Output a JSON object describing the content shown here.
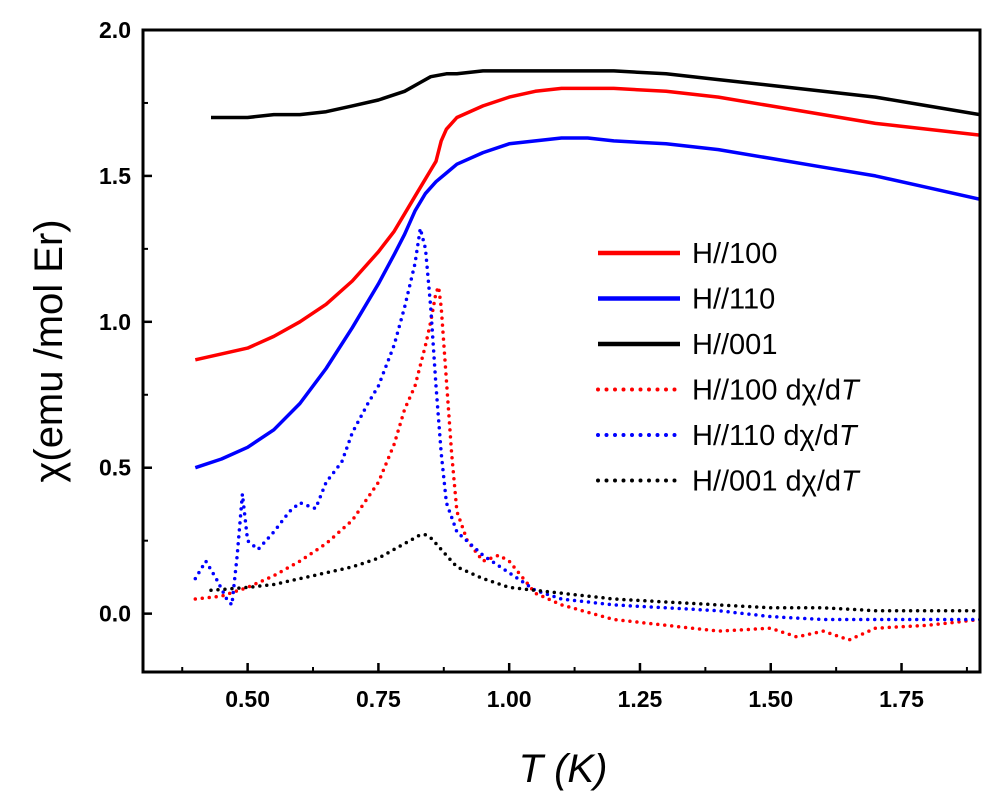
{
  "chart_data": {
    "type": "line",
    "xlabel": "T (K)",
    "xlabel_parts": {
      "symbol": "T",
      "unit": " (K)"
    },
    "ylabel": "χ(emu /mol Er)",
    "xlim": [
      0.3,
      1.9
    ],
    "ylim": [
      -0.2,
      2.0
    ],
    "x_ticks": [
      0.5,
      0.75,
      1.0,
      1.25,
      1.5,
      1.75
    ],
    "x_tick_labels": [
      "0.50",
      "0.75",
      "1.00",
      "1.25",
      "1.50",
      "1.75"
    ],
    "y_ticks": [
      0.0,
      0.5,
      1.0,
      1.5,
      2.0
    ],
    "y_tick_labels": [
      "0.0",
      "0.5",
      "1.0",
      "1.5",
      "2.0"
    ],
    "legend_position": "right",
    "series": [
      {
        "name": "H//100",
        "label_parts": {
          "main": "H//100",
          "deriv": "",
          "deriv_italic": ""
        },
        "style": "solid",
        "color": "#ff0000",
        "x": [
          0.4,
          0.45,
          0.5,
          0.55,
          0.6,
          0.65,
          0.7,
          0.75,
          0.78,
          0.8,
          0.82,
          0.84,
          0.85,
          0.86,
          0.87,
          0.88,
          0.9,
          0.95,
          1.0,
          1.05,
          1.1,
          1.15,
          1.2,
          1.3,
          1.4,
          1.5,
          1.6,
          1.7,
          1.8,
          1.9
        ],
        "y": [
          0.87,
          0.89,
          0.91,
          0.95,
          1.0,
          1.06,
          1.14,
          1.24,
          1.31,
          1.37,
          1.43,
          1.49,
          1.52,
          1.55,
          1.62,
          1.66,
          1.7,
          1.74,
          1.77,
          1.79,
          1.8,
          1.8,
          1.8,
          1.79,
          1.77,
          1.74,
          1.71,
          1.68,
          1.66,
          1.64
        ]
      },
      {
        "name": "H//110",
        "label_parts": {
          "main": "H//110",
          "deriv": "",
          "deriv_italic": ""
        },
        "style": "solid",
        "color": "#0000ff",
        "x": [
          0.4,
          0.45,
          0.5,
          0.55,
          0.6,
          0.65,
          0.7,
          0.75,
          0.78,
          0.8,
          0.82,
          0.84,
          0.86,
          0.88,
          0.9,
          0.95,
          1.0,
          1.05,
          1.1,
          1.15,
          1.2,
          1.3,
          1.4,
          1.5,
          1.6,
          1.7,
          1.8,
          1.9
        ],
        "y": [
          0.5,
          0.53,
          0.57,
          0.63,
          0.72,
          0.84,
          0.98,
          1.13,
          1.23,
          1.3,
          1.38,
          1.44,
          1.48,
          1.51,
          1.54,
          1.58,
          1.61,
          1.62,
          1.63,
          1.63,
          1.62,
          1.61,
          1.59,
          1.56,
          1.53,
          1.5,
          1.46,
          1.42
        ]
      },
      {
        "name": "H//001",
        "label_parts": {
          "main": "H//001",
          "deriv": "",
          "deriv_italic": ""
        },
        "style": "solid",
        "color": "#000000",
        "x": [
          0.43,
          0.5,
          0.55,
          0.6,
          0.65,
          0.7,
          0.75,
          0.8,
          0.83,
          0.85,
          0.88,
          0.9,
          0.95,
          1.0,
          1.05,
          1.1,
          1.15,
          1.2,
          1.3,
          1.4,
          1.5,
          1.6,
          1.7,
          1.8,
          1.9
        ],
        "y": [
          1.7,
          1.7,
          1.71,
          1.71,
          1.72,
          1.74,
          1.76,
          1.79,
          1.82,
          1.84,
          1.85,
          1.85,
          1.86,
          1.86,
          1.86,
          1.86,
          1.86,
          1.86,
          1.85,
          1.83,
          1.81,
          1.79,
          1.77,
          1.74,
          1.71
        ]
      },
      {
        "name": "H//100 dχ/dT",
        "label_parts": {
          "main": "H//100 ",
          "deriv": "dχ/d",
          "deriv_italic": "T"
        },
        "style": "dotted",
        "color": "#ff0000",
        "x": [
          0.4,
          0.45,
          0.5,
          0.55,
          0.6,
          0.65,
          0.7,
          0.75,
          0.78,
          0.8,
          0.82,
          0.84,
          0.85,
          0.86,
          0.865,
          0.87,
          0.88,
          0.89,
          0.9,
          0.92,
          0.95,
          0.98,
          1.0,
          1.05,
          1.1,
          1.2,
          1.3,
          1.4,
          1.5,
          1.55,
          1.6,
          1.65,
          1.7,
          1.8,
          1.9
        ],
        "y": [
          0.05,
          0.06,
          0.09,
          0.13,
          0.18,
          0.24,
          0.32,
          0.45,
          0.58,
          0.7,
          0.78,
          0.92,
          1.0,
          1.1,
          1.12,
          1.05,
          0.8,
          0.55,
          0.35,
          0.25,
          0.18,
          0.2,
          0.18,
          0.07,
          0.03,
          -0.02,
          -0.04,
          -0.06,
          -0.05,
          -0.08,
          -0.06,
          -0.09,
          -0.05,
          -0.04,
          -0.02
        ]
      },
      {
        "name": "H//110 dχ/dT",
        "label_parts": {
          "main": "H//110 ",
          "deriv": "dχ/d",
          "deriv_italic": "T"
        },
        "style": "dotted",
        "color": "#0000ff",
        "x": [
          0.4,
          0.42,
          0.44,
          0.46,
          0.47,
          0.48,
          0.49,
          0.5,
          0.52,
          0.55,
          0.58,
          0.6,
          0.63,
          0.65,
          0.68,
          0.7,
          0.73,
          0.75,
          0.78,
          0.8,
          0.82,
          0.83,
          0.84,
          0.85,
          0.86,
          0.87,
          0.88,
          0.9,
          0.95,
          1.0,
          1.05,
          1.1,
          1.2,
          1.3,
          1.4,
          1.5,
          1.6,
          1.7,
          1.8,
          1.9
        ],
        "y": [
          0.12,
          0.18,
          0.12,
          0.05,
          0.03,
          0.2,
          0.41,
          0.25,
          0.22,
          0.28,
          0.35,
          0.38,
          0.36,
          0.45,
          0.52,
          0.62,
          0.72,
          0.78,
          0.92,
          1.05,
          1.2,
          1.32,
          1.25,
          1.05,
          0.78,
          0.55,
          0.38,
          0.28,
          0.2,
          0.14,
          0.08,
          0.05,
          0.03,
          0.02,
          0.01,
          -0.01,
          -0.02,
          -0.02,
          -0.02,
          -0.02
        ]
      },
      {
        "name": "H//001 dχ/dT",
        "label_parts": {
          "main": "H//001 ",
          "deriv": "dχ/d",
          "deriv_italic": "T"
        },
        "style": "dotted",
        "color": "#000000",
        "x": [
          0.43,
          0.5,
          0.55,
          0.6,
          0.65,
          0.7,
          0.75,
          0.78,
          0.8,
          0.82,
          0.83,
          0.84,
          0.85,
          0.86,
          0.88,
          0.9,
          0.95,
          1.0,
          1.05,
          1.1,
          1.2,
          1.3,
          1.4,
          1.5,
          1.6,
          1.7,
          1.8,
          1.9
        ],
        "y": [
          0.08,
          0.09,
          0.1,
          0.12,
          0.14,
          0.16,
          0.19,
          0.22,
          0.24,
          0.26,
          0.27,
          0.27,
          0.26,
          0.24,
          0.2,
          0.16,
          0.12,
          0.09,
          0.08,
          0.07,
          0.05,
          0.04,
          0.03,
          0.02,
          0.02,
          0.01,
          0.01,
          0.01
        ]
      }
    ]
  }
}
